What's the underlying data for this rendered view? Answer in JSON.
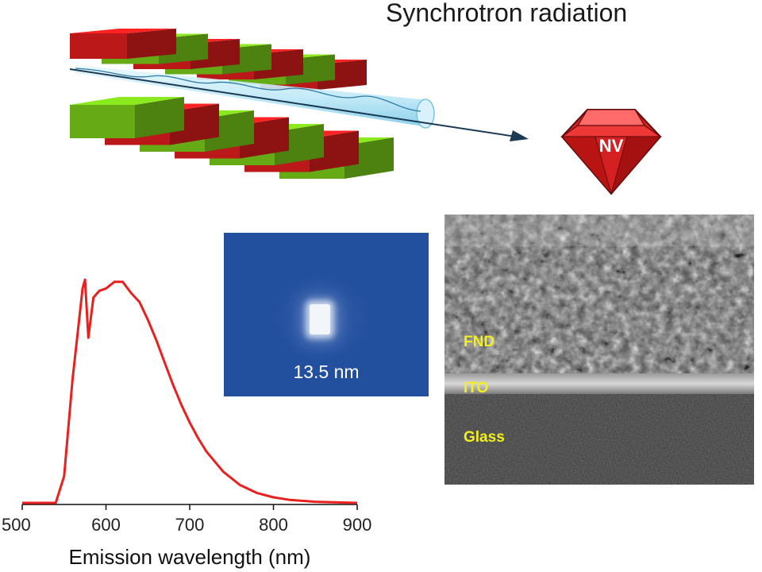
{
  "header": {
    "title": "Synchrotron radiation"
  },
  "gem": {
    "label": "NV"
  },
  "spot_panel": {
    "size_label": "13.5 nm"
  },
  "sem": {
    "layers": [
      "FND",
      "ITO",
      "Glass"
    ]
  },
  "colors": {
    "magnet_red": "#e41f1f",
    "magnet_green": "#7cd11a",
    "spectrum": "#e8201e",
    "panel_blue": "#2a55a3",
    "sem_label": "#f4ef1f"
  },
  "chart_data": {
    "type": "line",
    "xlabel": "Emission wavelength (nm)",
    "ylabel": "",
    "xlim": [
      500,
      900
    ],
    "ticks": [
      500,
      600,
      700,
      800,
      900
    ],
    "series": [
      {
        "name": "",
        "x": [
          500,
          540,
          550,
          560,
          568,
          572,
          575,
          579,
          585,
          592,
          600,
          610,
          620,
          630,
          640,
          650,
          660,
          670,
          680,
          690,
          700,
          710,
          720,
          740,
          760,
          780,
          800,
          820,
          850,
          900
        ],
        "y": [
          0.0,
          0.0,
          0.12,
          0.55,
          0.82,
          0.96,
          1.0,
          0.74,
          0.92,
          0.95,
          0.96,
          0.99,
          0.99,
          0.94,
          0.9,
          0.82,
          0.73,
          0.63,
          0.53,
          0.44,
          0.36,
          0.29,
          0.23,
          0.14,
          0.08,
          0.045,
          0.025,
          0.013,
          0.005,
          0.0
        ]
      }
    ]
  }
}
